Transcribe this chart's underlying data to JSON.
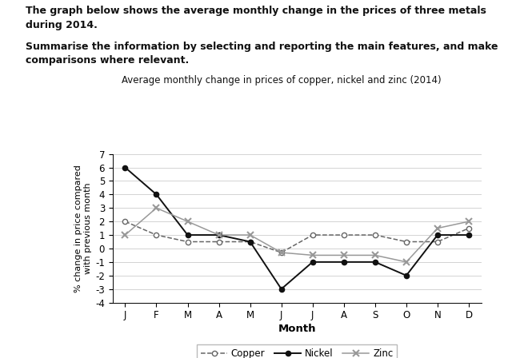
{
  "title": "Average monthly change in prices of copper, nickel and zinc (2014)",
  "xlabel": "Month",
  "ylabel": "% change in price compared\nwith previous month",
  "months": [
    "J",
    "F",
    "M",
    "A",
    "M",
    "J",
    "J",
    "A",
    "S",
    "O",
    "N",
    "D"
  ],
  "copper": [
    2,
    1,
    0.5,
    0.5,
    0.5,
    -0.3,
    1,
    1,
    1,
    0.5,
    0.5,
    1.5
  ],
  "nickel": [
    6,
    4,
    1,
    1,
    0.5,
    -3,
    -1,
    -1,
    -1,
    -2,
    1,
    1
  ],
  "zinc": [
    1,
    3,
    2,
    1,
    1,
    -0.3,
    -0.5,
    -0.5,
    -0.5,
    -1,
    1.5,
    2
  ],
  "ylim": [
    -4,
    7
  ],
  "yticks": [
    -4,
    -3,
    -2,
    -1,
    0,
    1,
    2,
    3,
    4,
    5,
    6,
    7
  ],
  "copper_color": "#666666",
  "nickel_color": "#111111",
  "zinc_color": "#999999",
  "background_color": "#ffffff",
  "header_line1": "The graph below shows the average monthly change in the prices of three metals during 2014.",
  "header_line2": "Summarise the information by selecting and reporting the main features, and make comparisons where relevant."
}
